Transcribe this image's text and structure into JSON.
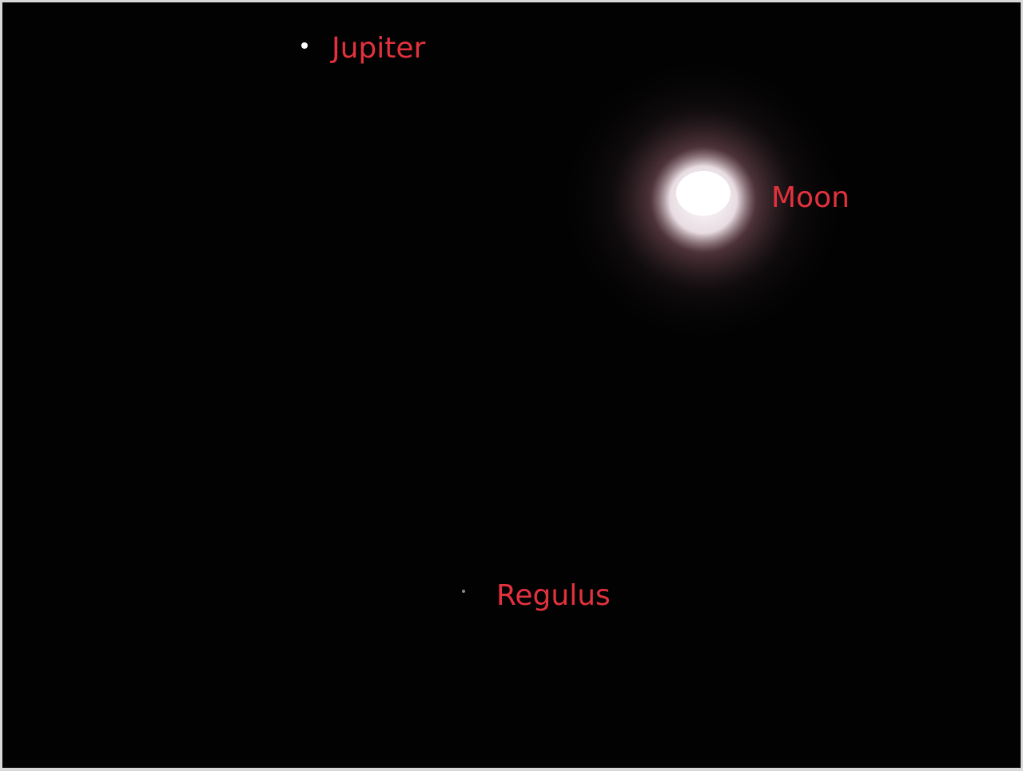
{
  "objects": [
    {
      "label": "Jupiter"
    },
    {
      "label": "Moon"
    },
    {
      "label": "Regulus"
    }
  ]
}
